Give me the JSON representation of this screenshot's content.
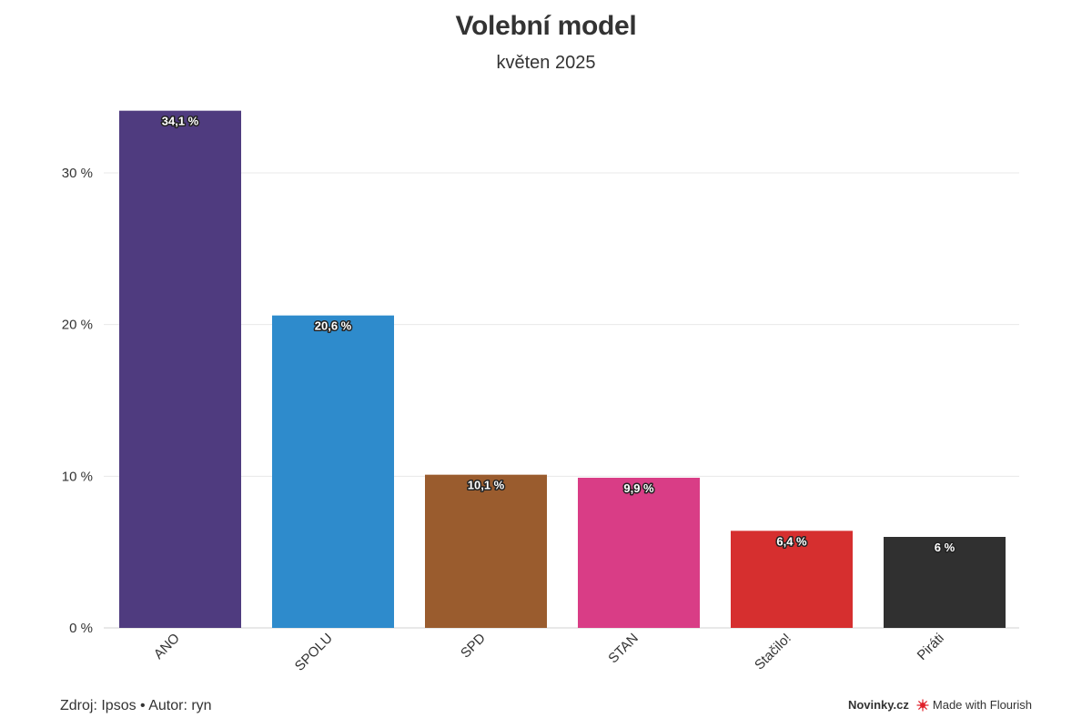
{
  "chart_data": {
    "type": "bar",
    "title": "Volební model",
    "subtitle": "květen 2025",
    "categories": [
      "ANO",
      "SPOLU",
      "SPD",
      "STAN",
      "Stačilo!",
      "Piráti"
    ],
    "values": [
      34.1,
      20.6,
      10.1,
      9.9,
      6.4,
      6
    ],
    "value_labels": [
      "34,1 %",
      "20,6 %",
      "10,1 %",
      "9,9 %",
      "6,4 %",
      "6 %"
    ],
    "colors": [
      "#4f3b7f",
      "#2e8bcc",
      "#9a5c2e",
      "#d93d86",
      "#d62f2f",
      "#303030"
    ],
    "yticks": [
      0,
      10,
      20,
      30
    ],
    "ytick_labels": [
      "0 %",
      "10 %",
      "20 %",
      "30 %"
    ],
    "ylim": [
      0,
      35.0
    ],
    "grid": true,
    "xlabel": "",
    "ylabel": ""
  },
  "footer": {
    "source": "Zdroj: Ipsos • Autor: ryn",
    "brand": "Novinky.cz",
    "made_with": "Made with Flourish"
  }
}
